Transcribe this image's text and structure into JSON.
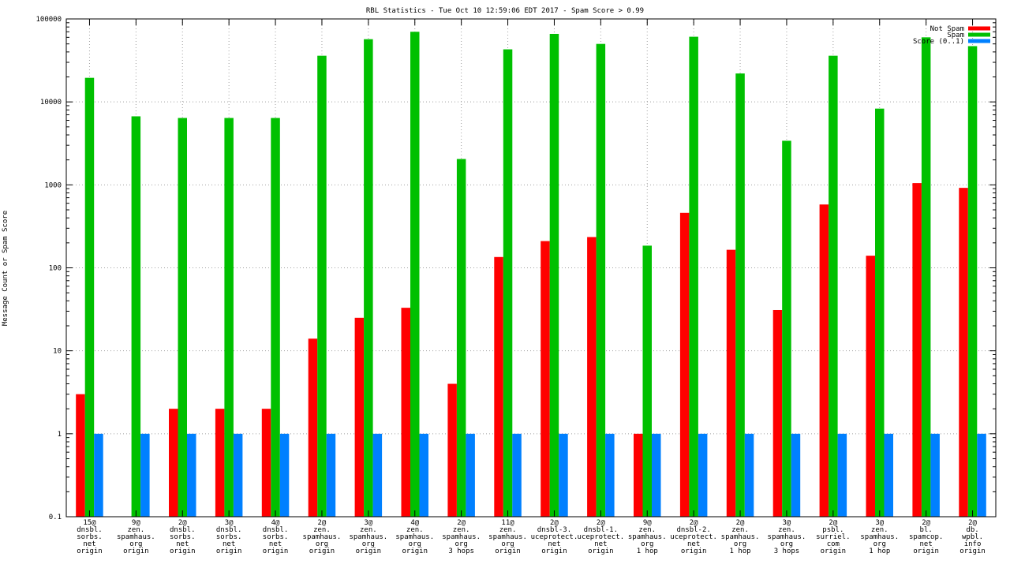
{
  "chart_data": {
    "type": "bar",
    "title": "RBL Statistics - Tue Oct 10 12:59:06 EDT 2017 - Spam Score > 0.99",
    "ylabel": "Message Count or Spam Score",
    "xlabel": "",
    "y_scale": "log",
    "ylim": [
      0.1,
      100000
    ],
    "y_ticks": [
      {
        "value": 0.1,
        "label": "0.1"
      },
      {
        "value": 1,
        "label": "1"
      },
      {
        "value": 10,
        "label": "10"
      },
      {
        "value": 100,
        "label": "100"
      },
      {
        "value": 1000,
        "label": "1000"
      },
      {
        "value": 10000,
        "label": "10000"
      },
      {
        "value": 100000,
        "label": "100000"
      }
    ],
    "grid": true,
    "legend_position": "top-right",
    "categories": [
      [
        "15@",
        "dnsbl.",
        "sorbs.",
        "net",
        "origin"
      ],
      [
        "9@",
        "zen.",
        "spamhaus.",
        "org",
        "origin"
      ],
      [
        "2@",
        "dnsbl.",
        "sorbs.",
        "net",
        "origin"
      ],
      [
        "3@",
        "dnsbl.",
        "sorbs.",
        "net",
        "origin"
      ],
      [
        "4@",
        "dnsbl.",
        "sorbs.",
        "net",
        "origin"
      ],
      [
        "2@",
        "zen.",
        "spamhaus.",
        "org",
        "origin"
      ],
      [
        "3@",
        "zen.",
        "spamhaus.",
        "org",
        "origin"
      ],
      [
        "4@",
        "zen.",
        "spamhaus.",
        "org",
        "origin"
      ],
      [
        "2@",
        "zen.",
        "spamhaus.",
        "org",
        "3 hops"
      ],
      [
        "11@",
        "zen.",
        "spamhaus.",
        "org",
        "origin"
      ],
      [
        "2@",
        "dnsbl-3.",
        "uceprotect.",
        "net",
        "origin"
      ],
      [
        "2@",
        "dnsbl-1.",
        "uceprotect.",
        "net",
        "origin"
      ],
      [
        "9@",
        "zen.",
        "spamhaus.",
        "org",
        "1 hop"
      ],
      [
        "2@",
        "dnsbl-2.",
        "uceprotect.",
        "net",
        "origin"
      ],
      [
        "2@",
        "zen.",
        "spamhaus.",
        "org",
        "1 hop"
      ],
      [
        "3@",
        "zen.",
        "spamhaus.",
        "org",
        "3 hops"
      ],
      [
        "2@",
        "psbl.",
        "surriel.",
        "com",
        "origin"
      ],
      [
        "3@",
        "zen.",
        "spamhaus.",
        "org",
        "1 hop"
      ],
      [
        "2@",
        "bl.",
        "spamcop.",
        "net",
        "origin"
      ],
      [
        "2@",
        "db.",
        "wpbl.",
        "info",
        "origin"
      ]
    ],
    "series": [
      {
        "name": "Not Spam",
        "color": "#ff0000",
        "values": [
          3,
          null,
          2,
          2,
          2,
          14,
          25,
          33,
          4,
          135,
          210,
          235,
          1,
          460,
          165,
          31,
          580,
          140,
          1050,
          920
        ]
      },
      {
        "name": "Spam",
        "color": "#00c000",
        "values": [
          19500,
          6700,
          6400,
          6400,
          6400,
          36000,
          57000,
          70000,
          2050,
          43000,
          66000,
          50000,
          185,
          61000,
          22000,
          3400,
          36000,
          8300,
          60000,
          47000
        ]
      },
      {
        "name": "Score (0..1)",
        "color": "#0080ff",
        "values": [
          1,
          1,
          1,
          1,
          1,
          1,
          1,
          1,
          1,
          1,
          1,
          1,
          1,
          1,
          1,
          1,
          1,
          1,
          1,
          1
        ]
      }
    ]
  }
}
